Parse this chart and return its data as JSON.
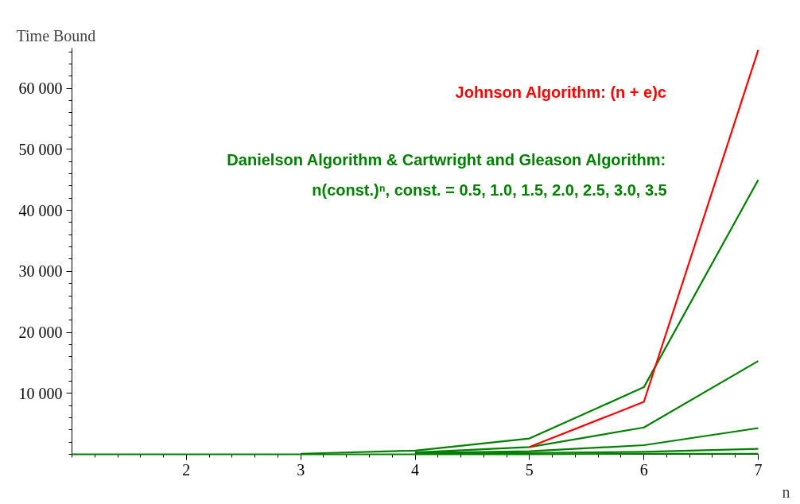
{
  "chart_data": {
    "type": "line",
    "xlabel": "n",
    "ylabel": "Time Bound",
    "x": [
      1,
      2,
      3,
      4,
      5,
      6,
      7
    ],
    "series": [
      {
        "color": "#008000",
        "values": [
          null,
          null,
          100,
          600,
          2600,
          11000,
          45000
        ]
      },
      {
        "color": "#008000",
        "values": [
          null,
          null,
          null,
          300,
          1200,
          4400,
          15300
        ]
      },
      {
        "color": "#008000",
        "values": [
          null,
          null,
          null,
          200,
          500,
          1500,
          4300
        ]
      },
      {
        "color": "#008000",
        "values": [
          null,
          null,
          null,
          100,
          200,
          400,
          900
        ]
      },
      {
        "color": "#008000",
        "values": [
          0,
          0,
          0,
          0,
          0,
          100,
          100
        ]
      },
      {
        "color": "#ff0000",
        "values": [
          null,
          null,
          null,
          null,
          1200,
          8600,
          66300
        ]
      }
    ],
    "xlim": [
      1,
      7
    ],
    "ylim": [
      0,
      66600
    ],
    "xticks": [
      2,
      3,
      4,
      5,
      6,
      7
    ],
    "yticks": [
      {
        "value": 10000,
        "label": "10 000"
      },
      {
        "value": 20000,
        "label": "20 000"
      },
      {
        "value": 30000,
        "label": "30 000"
      },
      {
        "value": 40000,
        "label": "40 000"
      },
      {
        "value": 50000,
        "label": "50 000"
      },
      {
        "value": 60000,
        "label": "60 000"
      }
    ],
    "annotations": [
      "Johnson Algorithm: (n + e)c",
      "Danielson Algorithm & Cartwright and Gleason Algorithm:",
      "n(const.)ⁿ, const. = 0.5, 1.0, 1.5, 2.0, 2.5, 3.0, 3.5"
    ],
    "grid": false,
    "marker": "none",
    "line_style": "solid"
  }
}
